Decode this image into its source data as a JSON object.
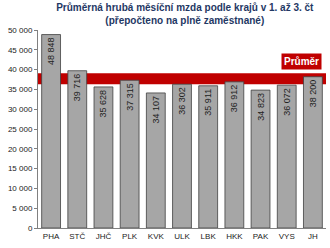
{
  "chart_data": {
    "type": "bar",
    "title": "Průměrná hrubá měsíční mzda podle krajů v 1. až 3. čt",
    "subtitle": "(přepočteno na plně zaměstnané)",
    "categories": [
      "PHA",
      "STČ",
      "JHČ",
      "PLK",
      "KVK",
      "ULK",
      "LBK",
      "HKK",
      "PAK",
      "VYS",
      "JH"
    ],
    "values": [
      48848,
      39716,
      35628,
      37315,
      34107,
      36302,
      35911,
      36912,
      34823,
      36072,
      38200
    ],
    "value_labels": [
      "48 848",
      "39 716",
      "35 628",
      "37 315",
      "34 107",
      "36 302",
      "35 911",
      "36 912",
      "34 823",
      "36 072",
      "38 200"
    ],
    "color": "#a6a6a6",
    "data_labels": true,
    "grid": false,
    "ylim": [
      0,
      50000
    ],
    "yticks": [
      {
        "value": 0,
        "label": "0"
      },
      {
        "value": 5000,
        "label": "5 000"
      },
      {
        "value": 10000,
        "label": "10 000"
      },
      {
        "value": 15000,
        "label": "15 000"
      },
      {
        "value": 20000,
        "label": "20 000"
      },
      {
        "value": 25000,
        "label": "25 000"
      },
      {
        "value": 30000,
        "label": "30 000"
      },
      {
        "value": 35000,
        "label": "35 000"
      },
      {
        "value": 40000,
        "label": "40 000"
      },
      {
        "value": 45000,
        "label": "45 000"
      },
      {
        "value": 50000,
        "label": "50 000"
      }
    ],
    "average": {
      "value": 37700,
      "label": "Průměr",
      "color": "#c00000"
    }
  }
}
